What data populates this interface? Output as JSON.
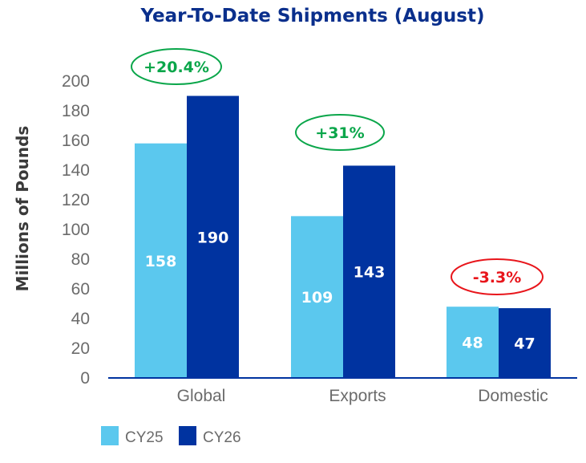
{
  "chart_data": {
    "type": "bar",
    "title": "Year-To-Date Shipments (August)",
    "ylabel": "Millions of Pounds",
    "xlabel": "",
    "ylim": [
      0,
      200
    ],
    "yticks": [
      0,
      20,
      40,
      60,
      80,
      100,
      120,
      140,
      160,
      180,
      200
    ],
    "grid": false,
    "legend_position": "bottom-left",
    "categories": [
      "Global",
      "Exports",
      "Domestic"
    ],
    "series": [
      {
        "name": "CY25",
        "values": [
          158,
          109,
          48
        ],
        "color": "#5bc8ee"
      },
      {
        "name": "CY26",
        "values": [
          190,
          143,
          47
        ],
        "color": "#0033a0"
      }
    ],
    "annotations": [
      {
        "category": "Global",
        "text": "+20.4%",
        "color": "#0aa64a"
      },
      {
        "category": "Exports",
        "text": "+31%",
        "color": "#0aa64a"
      },
      {
        "category": "Domestic",
        "text": "-3.3%",
        "color": "#e8151b"
      }
    ],
    "title_color": "#0a2f8c",
    "axis_color": "#0033a0"
  }
}
